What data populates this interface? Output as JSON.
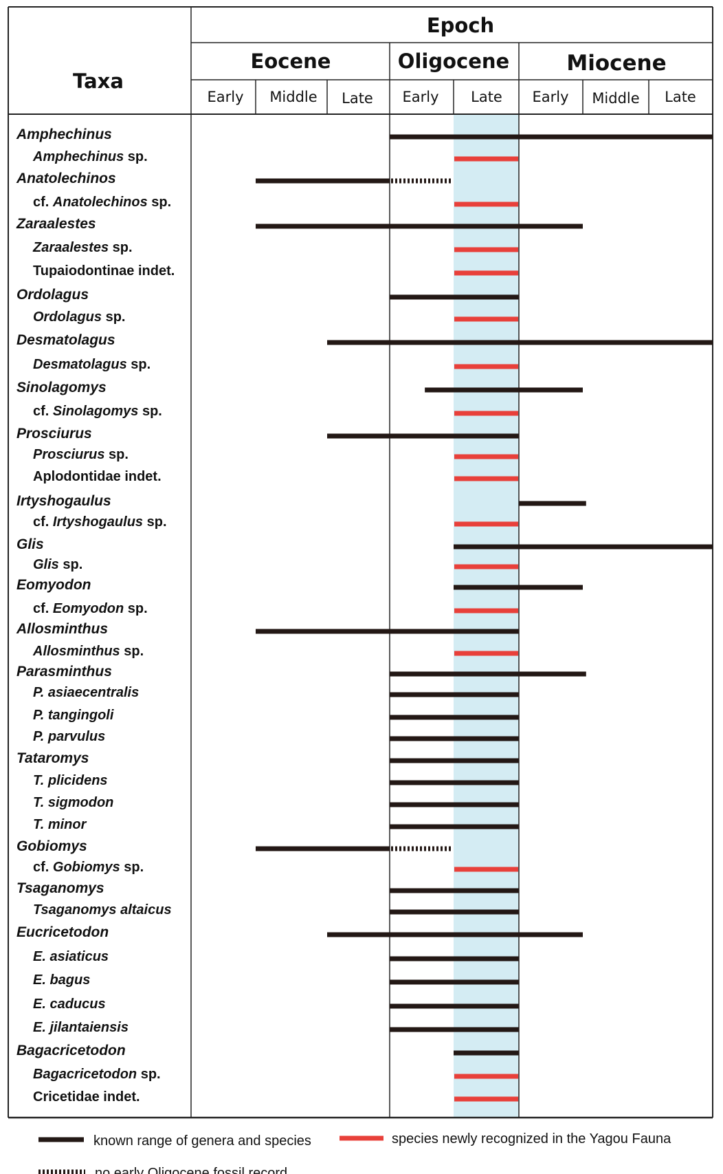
{
  "header": {
    "taxa_label": "Taxa",
    "epoch_label": "Epoch",
    "epochs": [
      "Eocene",
      "Oligocene",
      "Miocene"
    ],
    "subepochs": [
      "Early",
      "Middle",
      "Late",
      "Early",
      "Late",
      "Early",
      "Middle",
      "Late"
    ]
  },
  "colors": {
    "known_range": "#231815",
    "new_species": "#e8403a",
    "highlight_band": "#d4ecf3",
    "grid": "#222222"
  },
  "legend": {
    "known_range": "known range of genera and species",
    "new_species": "species newly recognized in the Yagou Fauna",
    "no_record": "no early Oligocene fossil record"
  },
  "chart_data": {
    "type": "range-chart",
    "x_unit": "sub-epoch index (0 = base of Early Eocene, 8 = top of Late Miocene)",
    "highlighted_interval": [
      4,
      5
    ],
    "taxa": [
      {
        "name": "Amphechinus",
        "rank": "genus",
        "known": [
          3,
          8
        ]
      },
      {
        "name": "Amphechinus sp.",
        "rank": "species",
        "new": [
          4,
          5
        ]
      },
      {
        "name": "Anatolechinos",
        "rank": "genus",
        "known": [
          1,
          3
        ],
        "no_record": [
          3,
          4
        ]
      },
      {
        "prefix": "cf. ",
        "name": "Anatolechinos",
        "suffix": " sp.",
        "rank": "species",
        "new": [
          4,
          5
        ]
      },
      {
        "name": "Zaraalestes",
        "rank": "genus",
        "known": [
          1,
          6
        ]
      },
      {
        "name": "Zaraalestes sp.",
        "rank": "species",
        "new": [
          4,
          5
        ]
      },
      {
        "name": "Tupaiodontinae indet.",
        "rank": "indet",
        "new": [
          4,
          5
        ]
      },
      {
        "name": "Ordolagus",
        "rank": "genus",
        "known": [
          3,
          5
        ]
      },
      {
        "name": "Ordolagus sp.",
        "rank": "species",
        "new": [
          4,
          5
        ]
      },
      {
        "name": "Desmatolagus",
        "rank": "genus",
        "known": [
          2,
          8
        ]
      },
      {
        "name": "Desmatolagus",
        "suffix": "  sp.",
        "rank": "species",
        "new": [
          4,
          5
        ]
      },
      {
        "name": "Sinolagomys",
        "rank": "genus",
        "known": [
          3.55,
          6
        ]
      },
      {
        "prefix": "cf. ",
        "name": "Sinolagomys",
        "suffix": " sp.",
        "rank": "species",
        "new": [
          4,
          5
        ]
      },
      {
        "name": "Prosciurus",
        "rank": "genus",
        "known": [
          2,
          5
        ]
      },
      {
        "name": "Prosciurus sp.",
        "rank": "species",
        "new": [
          4,
          5
        ]
      },
      {
        "name": "Aplodontidae  indet.",
        "rank": "indet",
        "new": [
          4,
          5
        ]
      },
      {
        "name": "Irtyshogaulus",
        "rank": "genus-plain",
        "known": [
          5,
          6.05
        ]
      },
      {
        "prefix": "cf. ",
        "name": "Irtyshogaulus",
        "suffix": " sp.",
        "rank": "species",
        "new": [
          4,
          5
        ]
      },
      {
        "name": "Glis",
        "rank": "genus",
        "known": [
          4,
          8
        ]
      },
      {
        "name": "Glis",
        "suffix": " sp.",
        "rank": "species",
        "new": [
          4,
          5
        ]
      },
      {
        "name": "Eomyodon",
        "rank": "genus",
        "known": [
          4,
          6
        ]
      },
      {
        "prefix": "cf. ",
        "name": "Eomyodon",
        "suffix": " sp.",
        "rank": "species",
        "new": [
          4,
          5
        ]
      },
      {
        "name": "Allosminthus",
        "rank": "genus",
        "known": [
          1,
          5
        ]
      },
      {
        "name": "Allosminthus",
        "suffix": " sp.",
        "rank": "species",
        "new": [
          4,
          5
        ]
      },
      {
        "name": "Parasminthus",
        "rank": "genus",
        "known": [
          3,
          6.05
        ]
      },
      {
        "name": "P. asiaecentralis",
        "rank": "species",
        "known": [
          3,
          5
        ]
      },
      {
        "name": "P. tangingoli",
        "rank": "species",
        "known": [
          3,
          5
        ]
      },
      {
        "name": "P. parvulus",
        "rank": "species",
        "known": [
          3,
          5
        ]
      },
      {
        "name": "Tataromys",
        "rank": "genus",
        "known": [
          3,
          5
        ]
      },
      {
        "name": "T. plicidens",
        "rank": "species",
        "known": [
          3,
          5
        ]
      },
      {
        "name": "T. sigmodon",
        "rank": "species",
        "known": [
          3,
          5
        ]
      },
      {
        "name": "T. minor",
        "rank": "species",
        "known": [
          3,
          5
        ]
      },
      {
        "name": "Gobiomys",
        "rank": "genus",
        "known": [
          1,
          3
        ],
        "no_record": [
          3,
          4
        ]
      },
      {
        "prefix": "cf. ",
        "name": "Gobiomys",
        "suffix": " sp.",
        "rank": "species",
        "new": [
          4,
          5
        ]
      },
      {
        "name": "Tsaganomys",
        "rank": "genus",
        "known": [
          3,
          5
        ]
      },
      {
        "name": "Tsaganomys altaicus",
        "rank": "species",
        "known": [
          3,
          5
        ]
      },
      {
        "name": "Eucricetodon",
        "rank": "genus",
        "known": [
          2,
          6
        ]
      },
      {
        "name": "E. asiaticus",
        "rank": "species",
        "known": [
          3,
          5
        ]
      },
      {
        "name": "E. bagus",
        "rank": "species",
        "known": [
          3,
          5
        ]
      },
      {
        "name": "E. caducus",
        "rank": "species",
        "known": [
          3,
          5
        ]
      },
      {
        "name": "E. jilantaiensis",
        "rank": "species",
        "known": [
          3,
          5
        ]
      },
      {
        "name": "Bagacricetodon",
        "rank": "genus",
        "known": [
          4,
          5
        ]
      },
      {
        "name": "Bagacricetodon sp.",
        "rank": "species",
        "new": [
          4,
          5
        ]
      },
      {
        "name": "Cricetidae indet.",
        "rank": "indet",
        "new": [
          4,
          5
        ]
      }
    ]
  }
}
